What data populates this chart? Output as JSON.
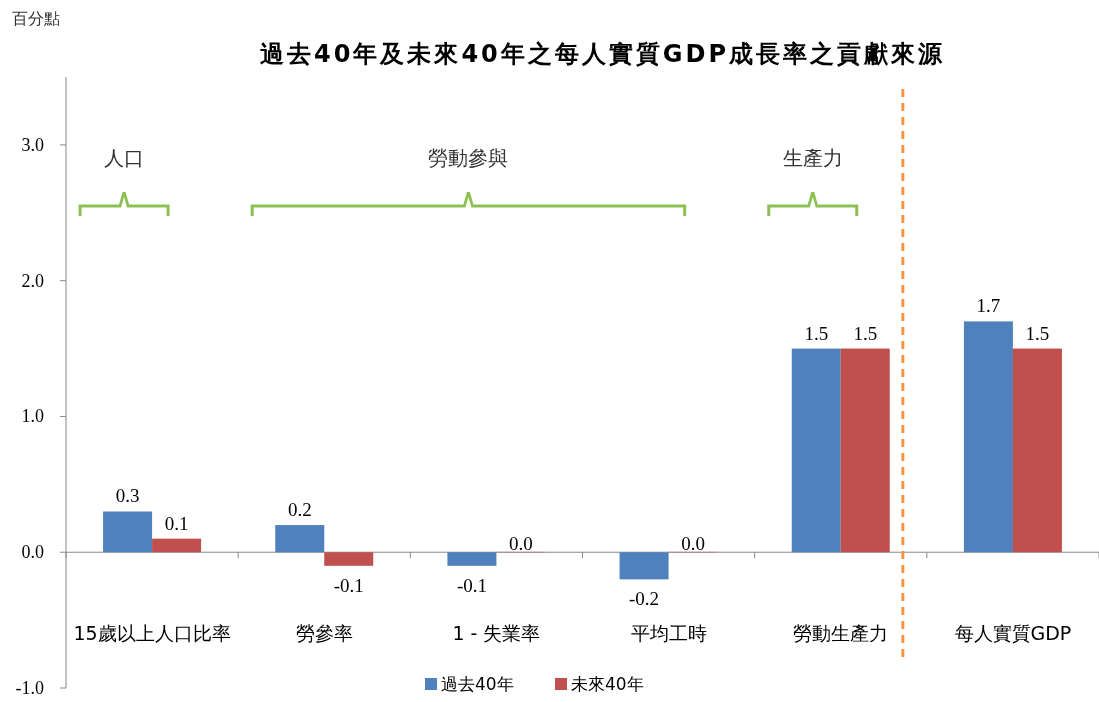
{
  "chart_data": {
    "type": "bar",
    "title": "過去40年及未來40年之每人實質GDP成長率之貢獻來源",
    "ylabel": "百分點",
    "categories": [
      "15歲以上人口比率",
      "勞參率",
      "1 - 失業率",
      "平均工時",
      "勞動生產力",
      "每人實質GDP"
    ],
    "series": [
      {
        "name": "過去40年",
        "color": "#4f81bd",
        "values": [
          0.3,
          0.2,
          -0.1,
          -0.2,
          1.5,
          1.7
        ],
        "value_labels": [
          "0.3",
          "0.2",
          "-0.1",
          "-0.2",
          "1.5",
          "1.7"
        ]
      },
      {
        "name": "未來40年",
        "color": "#c0504d",
        "values": [
          0.1,
          -0.1,
          0.0,
          0.0,
          1.5,
          1.5
        ],
        "value_labels": [
          "0.1",
          "-0.1",
          "0.0",
          "0.0",
          "1.5",
          "1.5"
        ]
      }
    ],
    "ylim": [
      -1.0,
      3.5
    ],
    "yticks": [
      {
        "value": -1.0,
        "label": "-1.0"
      },
      {
        "value": 0,
        "label": "0.0"
      },
      {
        "value": 1.0,
        "label": "1.0"
      },
      {
        "value": 2.0,
        "label": "2.0"
      },
      {
        "value": 3.0,
        "label": "3.0"
      }
    ],
    "annotations": [
      "人口",
      "勞動參與",
      "生產力"
    ],
    "legend": "bottom"
  }
}
